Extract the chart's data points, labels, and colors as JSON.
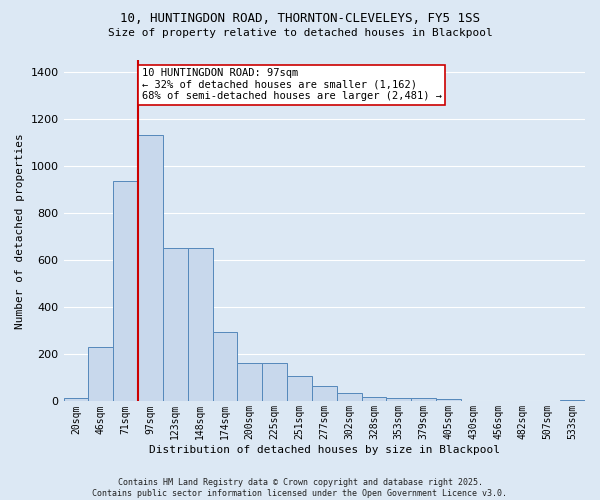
{
  "title_line1": "10, HUNTINGDON ROAD, THORNTON-CLEVELEYS, FY5 1SS",
  "title_line2": "Size of property relative to detached houses in Blackpool",
  "xlabel": "Distribution of detached houses by size in Blackpool",
  "ylabel": "Number of detached properties",
  "bar_labels": [
    "20sqm",
    "46sqm",
    "71sqm",
    "97sqm",
    "123sqm",
    "148sqm",
    "174sqm",
    "200sqm",
    "225sqm",
    "251sqm",
    "277sqm",
    "302sqm",
    "328sqm",
    "353sqm",
    "379sqm",
    "405sqm",
    "430sqm",
    "456sqm",
    "482sqm",
    "507sqm",
    "533sqm"
  ],
  "bar_values": [
    15,
    230,
    935,
    1130,
    650,
    650,
    295,
    165,
    165,
    110,
    65,
    35,
    20,
    15,
    15,
    10,
    0,
    0,
    0,
    0,
    8
  ],
  "bar_color": "#c8d8ec",
  "bar_edge_color": "#5588bb",
  "red_line_x": 2.5,
  "red_line_color": "#cc0000",
  "annotation_text": "10 HUNTINGDON ROAD: 97sqm\n← 32% of detached houses are smaller (1,162)\n68% of semi-detached houses are larger (2,481) →",
  "annotation_box_facecolor": "#ffffff",
  "annotation_box_edgecolor": "#cc0000",
  "ylim": [
    0,
    1450
  ],
  "yticks": [
    0,
    200,
    400,
    600,
    800,
    1000,
    1200,
    1400
  ],
  "bg_color": "#dce8f4",
  "grid_color": "#ffffff",
  "footnote": "Contains HM Land Registry data © Crown copyright and database right 2025.\nContains public sector information licensed under the Open Government Licence v3.0."
}
